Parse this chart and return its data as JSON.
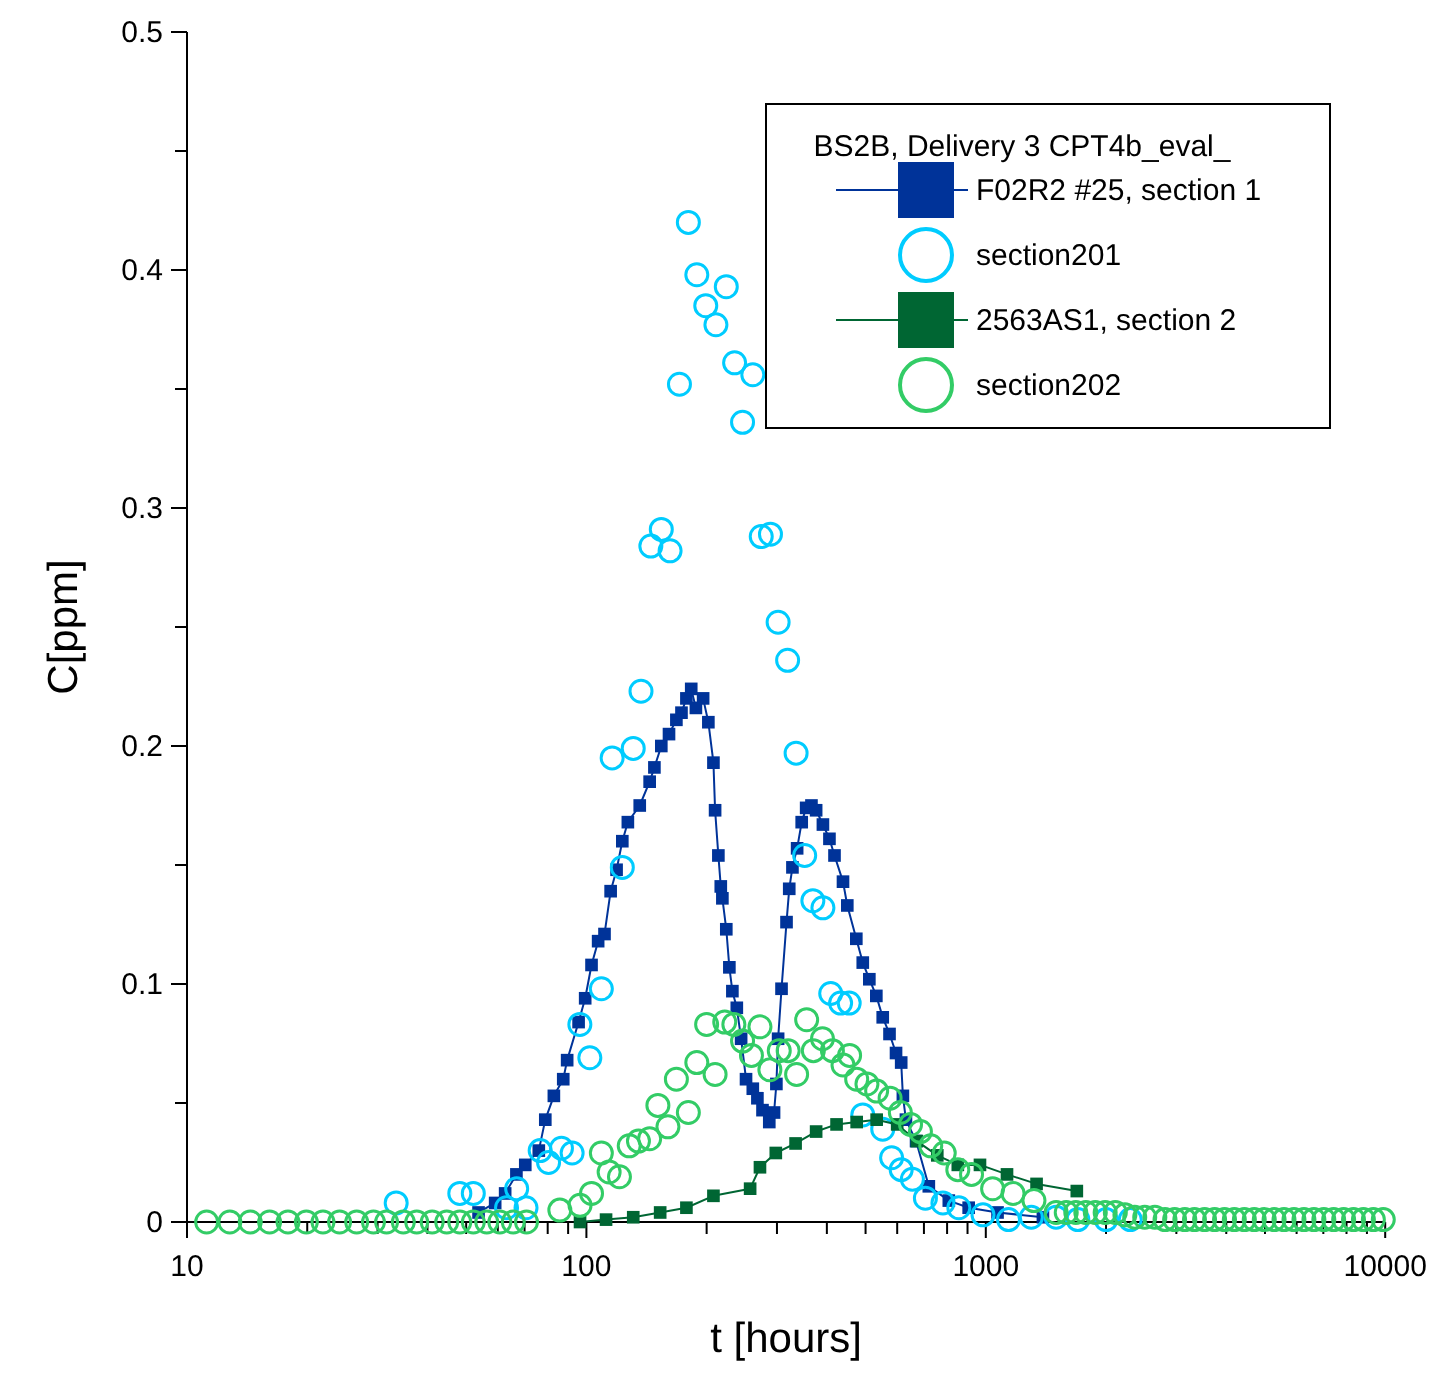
{
  "chart_data": {
    "type": "line",
    "xlabel": "t [hours]",
    "ylabel": "C[ppm]",
    "log": "x",
    "xlim": [
      10,
      10000
    ],
    "ylim": [
      0,
      0.5
    ],
    "xticks": [
      10,
      {
        "value": 20,
        "label": null
      },
      {
        "value": 30,
        "label": null
      },
      {
        "value": 40,
        "label": null
      },
      {
        "value": 50,
        "label": null
      },
      {
        "value": 60,
        "label": null
      },
      {
        "value": 70,
        "label": null
      },
      {
        "value": 80,
        "label": null
      },
      {
        "value": 90,
        "label": null
      },
      100,
      {
        "value": 200,
        "label": null
      },
      {
        "value": 300,
        "label": null
      },
      {
        "value": 400,
        "label": null
      },
      {
        "value": 500,
        "label": null
      },
      {
        "value": 600,
        "label": null
      },
      {
        "value": 700,
        "label": null
      },
      {
        "value": 800,
        "label": null
      },
      {
        "value": 900,
        "label": null
      },
      1000,
      {
        "value": 2000,
        "label": null
      },
      {
        "value": 3000,
        "label": null
      },
      {
        "value": 4000,
        "label": null
      },
      {
        "value": 5000,
        "label": null
      },
      {
        "value": 6000,
        "label": null
      },
      {
        "value": 7000,
        "label": null
      },
      {
        "value": 8000,
        "label": null
      },
      {
        "value": 9000,
        "label": null
      },
      10000
    ],
    "yticks": [
      0,
      {
        "value": 0.05,
        "label": null
      },
      0.1,
      {
        "value": 0.15,
        "label": null
      },
      0.2,
      {
        "value": 0.25,
        "label": null
      },
      0.3,
      {
        "value": 0.35,
        "label": null
      },
      0.4,
      {
        "value": 0.45,
        "label": null
      },
      0.5
    ],
    "grid": false,
    "legend": "top right",
    "legend_title": "BS2B, Delivery 3 CPT4b_eval_",
    "series": [
      {
        "name": "F02R2 #25, section 1",
        "marker": "square",
        "color": "#003399",
        "x": [
          53.7,
          59.1,
          62.6,
          66.8,
          70.3,
          76,
          78.9,
          82.9,
          87.5,
          89.5,
          95.6,
          99.3,
          103,
          107,
          111,
          115,
          119,
          123,
          127,
          136,
          144,
          148,
          154,
          161,
          168,
          173,
          178,
          183,
          188,
          196,
          202,
          208,
          210,
          214,
          217,
          219,
          224,
          228,
          232,
          238,
          244,
          251,
          261,
          268,
          276,
          287,
          295,
          299,
          302,
          308,
          317,
          322,
          328,
          337,
          346,
          355,
          366,
          376,
          391,
          406,
          418,
          439,
          450,
          474,
          492,
          511,
          532,
          552,
          574,
          596,
          614,
          620,
          631,
          669,
          720,
          808,
          906,
          1070,
          1390
        ],
        "values": [
          0.004,
          0.008,
          0.012,
          0.02,
          0.024,
          0.03,
          0.043,
          0.053,
          0.06,
          0.068,
          0.084,
          0.094,
          0.108,
          0.118,
          0.121,
          0.139,
          0.148,
          0.16,
          0.168,
          0.175,
          0.185,
          0.191,
          0.2,
          0.205,
          0.211,
          0.214,
          0.22,
          0.224,
          0.216,
          0.22,
          0.21,
          0.193,
          0.173,
          0.154,
          0.141,
          0.136,
          0.123,
          0.107,
          0.097,
          0.09,
          0.077,
          0.06,
          0.056,
          0.052,
          0.047,
          0.042,
          0.046,
          0.058,
          0.077,
          0.098,
          0.126,
          0.14,
          0.149,
          0.157,
          0.168,
          0.174,
          0.175,
          0.173,
          0.167,
          0.161,
          0.154,
          0.143,
          0.133,
          0.119,
          0.109,
          0.102,
          0.095,
          0.086,
          0.079,
          0.071,
          0.067,
          0.053,
          0.043,
          0.034,
          0.015,
          0.009,
          0.006,
          0.004,
          0.002
        ]
      },
      {
        "name": "section201",
        "type": "scatter",
        "marker": "circle",
        "color": "#00ccff",
        "x": [
          33.4,
          48.2,
          52.1,
          63.1,
          66.9,
          70.6,
          76.6,
          80.4,
          86.6,
          92.1,
          96.3,
          102,
          109,
          116,
          123,
          131,
          137,
          145,
          154,
          162,
          171,
          180,
          189,
          199,
          211,
          224,
          235,
          246,
          261,
          274,
          289,
          302,
          319,
          335,
          352,
          369,
          391,
          409,
          433,
          455,
          492,
          552,
          581,
          614,
          655,
          706,
          781,
          856,
          984,
          1140,
          1300,
          1500,
          1700,
          2000,
          2300
        ],
        "values": [
          0.008,
          0.012,
          0.012,
          0.006,
          0.014,
          0.006,
          0.03,
          0.025,
          0.031,
          0.029,
          0.083,
          0.069,
          0.098,
          0.195,
          0.149,
          0.199,
          0.223,
          0.284,
          0.291,
          0.282,
          0.352,
          0.42,
          0.398,
          0.385,
          0.377,
          0.393,
          0.361,
          0.336,
          0.356,
          0.288,
          0.289,
          0.252,
          0.236,
          0.197,
          0.154,
          0.135,
          0.132,
          0.096,
          0.092,
          0.092,
          0.045,
          0.039,
          0.027,
          0.022,
          0.018,
          0.01,
          0.008,
          0.006,
          0.003,
          0.001,
          0.002,
          0.002,
          0.001,
          0.001,
          0.001
        ]
      },
      {
        "name": "2563AS1, section 2",
        "marker": "square",
        "color": "#006633",
        "x": [
          96.4,
          112,
          131,
          153,
          178,
          208,
          257,
          272,
          298,
          334,
          376,
          423,
          475,
          533,
          600,
          672,
          756,
          851,
          967,
          1130,
          1340,
          1690
        ],
        "values": [
          0,
          0.001,
          0.002,
          0.004,
          0.006,
          0.011,
          0.014,
          0.023,
          0.029,
          0.033,
          0.038,
          0.041,
          0.042,
          0.043,
          0.041,
          0.034,
          0.028,
          0.024,
          0.024,
          0.02,
          0.016,
          0.013
        ]
      },
      {
        "name": "section202",
        "type": "scatter",
        "marker": "circle",
        "color": "#33cc66",
        "x": [
          11.2,
          12.8,
          14.4,
          16.1,
          17.9,
          19.9,
          21.9,
          24.1,
          26.6,
          29.3,
          31.6,
          34.8,
          37.6,
          41.1,
          44.7,
          48.2,
          52.1,
          56.3,
          60.7,
          65.6,
          70.8,
          85.8,
          96.4,
          103,
          109,
          114,
          121,
          128,
          135,
          144,
          151,
          160,
          168,
          180,
          189,
          200,
          210,
          222,
          234,
          246,
          259,
          272,
          288,
          304,
          320,
          336,
          356,
          370,
          390,
          413,
          439,
          456,
          475,
          504,
          533,
          576,
          611,
          648,
          686,
          728,
          787,
          851,
          921,
          1040,
          1170,
          1320,
          1500,
          1590,
          1680,
          1780,
          1880,
          1990,
          2110,
          2230,
          2360,
          2500,
          2650,
          2810,
          2970,
          3150,
          3330,
          3530,
          3740,
          3960,
          4190,
          4440,
          4700,
          4980,
          5270,
          5580,
          5910,
          6260,
          6630,
          7020,
          7430,
          7870,
          8330,
          8820,
          9340,
          9890
        ],
        "values": [
          0,
          0,
          0,
          0,
          0,
          0,
          0,
          0,
          0,
          0,
          0,
          0,
          0,
          0,
          0,
          0,
          0,
          0,
          0,
          0,
          0,
          0.005,
          0.007,
          0.012,
          0.029,
          0.021,
          0.019,
          0.032,
          0.034,
          0.035,
          0.049,
          0.04,
          0.06,
          0.046,
          0.067,
          0.083,
          0.062,
          0.084,
          0.083,
          0.076,
          0.07,
          0.082,
          0.064,
          0.072,
          0.072,
          0.062,
          0.085,
          0.072,
          0.077,
          0.072,
          0.066,
          0.07,
          0.06,
          0.058,
          0.055,
          0.052,
          0.046,
          0.041,
          0.038,
          0.032,
          0.029,
          0.022,
          0.02,
          0.014,
          0.012,
          0.009,
          0.004,
          0.004,
          0.004,
          0.004,
          0.004,
          0.004,
          0.004,
          0.003,
          0.002,
          0.002,
          0.002,
          0.001,
          0.001,
          0.001,
          0.001,
          0.001,
          0.001,
          0.001,
          0.001,
          0.001,
          0.001,
          0.001,
          0.001,
          0.001,
          0.001,
          0.001,
          0.001,
          0.001,
          0.001,
          0.001,
          0.001,
          0.001,
          0.001,
          0.001
        ]
      }
    ]
  }
}
